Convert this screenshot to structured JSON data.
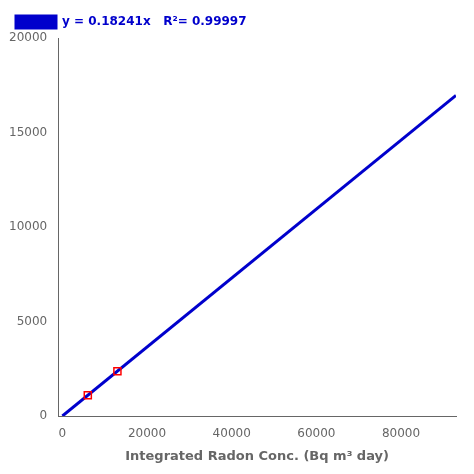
{
  "chart_data": {
    "type": "scatter",
    "x_label": "Integrated Radon Conc. (Bq m³ day)",
    "series": [
      {
        "name": "y = 0.18241x   R²= 0.99997",
        "type": "line",
        "color": "#0000CC",
        "line_style": "solid",
        "x": [
          0,
          93000
        ],
        "values": [
          0,
          16964.13
        ]
      },
      {
        "type": "scatter",
        "color": "red",
        "marker": "square",
        "x": [
          6000,
          13000
        ],
        "values": [
          1094,
          2371
        ]
      }
    ],
    "xlim": [
      -1000,
      93000
    ],
    "xticks": [
      0,
      20000,
      40000,
      60000,
      80000
    ],
    "ylim": [
      0,
      20000
    ],
    "yticks": [
      0,
      5000,
      10000,
      15000,
      20000
    ],
    "grid": false,
    "legend": "upper left"
  }
}
